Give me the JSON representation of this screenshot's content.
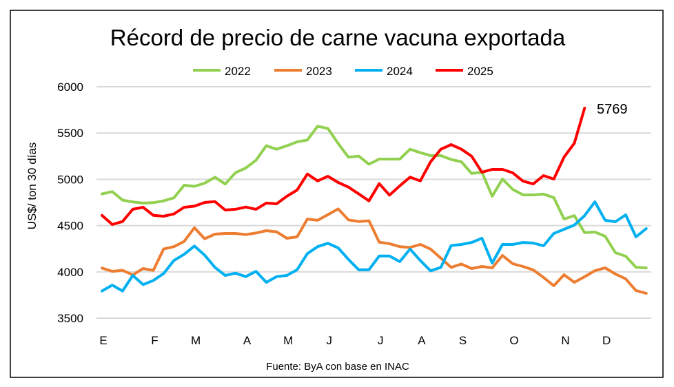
{
  "chart_data": {
    "type": "line",
    "title": "Récord de precio de carne vacuna exportada",
    "ylabel": "US$/ ton 30 días",
    "xlabel": "",
    "source": "Fuente: ByA con base en INAC",
    "ylim": [
      3500,
      6000
    ],
    "yticks": [
      3500,
      4000,
      4500,
      5000,
      5500,
      6000
    ],
    "grid": true,
    "legend": "top",
    "x_ticks": [
      {
        "label": "E",
        "week": 0
      },
      {
        "label": "F",
        "week": 5
      },
      {
        "label": "M",
        "week": 9
      },
      {
        "label": "A",
        "week": 14
      },
      {
        "label": "M",
        "week": 18
      },
      {
        "label": "J",
        "week": 22
      },
      {
        "label": "J",
        "week": 27
      },
      {
        "label": "A",
        "week": 31
      },
      {
        "label": "S",
        "week": 35
      },
      {
        "label": "O",
        "week": 40
      },
      {
        "label": "N",
        "week": 45
      },
      {
        "label": "D",
        "week": 49
      }
    ],
    "annotation": {
      "text": "5769",
      "series": "2025"
    },
    "series": [
      {
        "name": "2022",
        "color": "#92D050",
        "values": [
          4842,
          4867,
          4775,
          4755,
          4743,
          4748,
          4767,
          4800,
          4936,
          4924,
          4958,
          5023,
          4949,
          5072,
          5122,
          5206,
          5363,
          5325,
          5362,
          5405,
          5425,
          5574,
          5549,
          5387,
          5239,
          5251,
          5164,
          5219,
          5219,
          5219,
          5325,
          5288,
          5256,
          5256,
          5214,
          5189,
          5063,
          5077,
          4817,
          5003,
          4891,
          4832,
          4832,
          4840,
          4802,
          4571,
          4608,
          4423,
          4430,
          4385,
          4207,
          4170,
          4050,
          4043
        ]
      },
      {
        "name": "2023",
        "color": "#ED7D31",
        "values": [
          4041,
          4006,
          4016,
          3967,
          4036,
          4016,
          4247,
          4272,
          4329,
          4477,
          4358,
          4408,
          4415,
          4415,
          4403,
          4420,
          4445,
          4433,
          4363,
          4378,
          4571,
          4557,
          4618,
          4680,
          4562,
          4544,
          4552,
          4321,
          4304,
          4272,
          4264,
          4296,
          4246,
          4148,
          4048,
          4085,
          4036,
          4058,
          4043,
          4177,
          4088,
          4058,
          4021,
          3940,
          3850,
          3969,
          3887,
          3947,
          4013,
          4043,
          3977,
          3925,
          3798,
          3768
        ]
      },
      {
        "name": "2024",
        "color": "#00B0F0",
        "values": [
          3793,
          3857,
          3793,
          3961,
          3862,
          3907,
          3982,
          4123,
          4190,
          4279,
          4180,
          4048,
          3961,
          3986,
          3949,
          4006,
          3887,
          3949,
          3961,
          4023,
          4197,
          4272,
          4309,
          4259,
          4135,
          4023,
          4023,
          4172,
          4172,
          4110,
          4246,
          4123,
          4011,
          4048,
          4284,
          4296,
          4318,
          4363,
          4095,
          4296,
          4296,
          4318,
          4311,
          4281,
          4415,
          4460,
          4505,
          4608,
          4757,
          4557,
          4542,
          4616,
          4378,
          4467
        ]
      },
      {
        "name": "2025",
        "color": "#FF0000",
        "values": [
          4611,
          4512,
          4544,
          4676,
          4698,
          4611,
          4601,
          4626,
          4698,
          4710,
          4750,
          4760,
          4668,
          4676,
          4700,
          4676,
          4743,
          4735,
          4817,
          4884,
          5057,
          4983,
          5033,
          4966,
          4916,
          4842,
          4767,
          4953,
          4829,
          4929,
          5023,
          4983,
          5189,
          5325,
          5375,
          5325,
          5249,
          5077,
          5107,
          5107,
          5070,
          4980,
          4950,
          5040,
          5003,
          5240,
          5390,
          5769
        ]
      }
    ]
  }
}
